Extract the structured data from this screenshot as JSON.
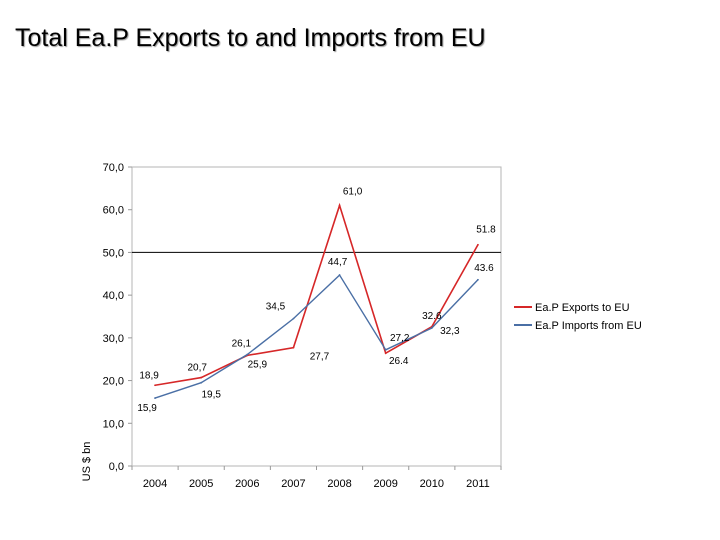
{
  "slide": {
    "title": "Total Ea.P Exports to and Imports from EU"
  },
  "chart_data": {
    "type": "line",
    "title": "",
    "xlabel": "",
    "ylabel": "US $ bn",
    "ylim": [
      0,
      70
    ],
    "yticks": [
      "0,0",
      "10,0",
      "20,0",
      "30,0",
      "40,0",
      "50,0",
      "60,0",
      "70,0"
    ],
    "categories": [
      "2004",
      "2005",
      "2006",
      "2007",
      "2008",
      "2009",
      "2010",
      "2011"
    ],
    "reference_line": 50,
    "grid": false,
    "legend": "right",
    "series": [
      {
        "name": "Ea.P Exports to EU",
        "color": "#d62728",
        "values": [
          18.9,
          20.7,
          25.9,
          27.7,
          61.0,
          26.4,
          32.6,
          51.8
        ],
        "labels": [
          "18,9",
          "20,7",
          "25,9",
          "27,7",
          "61,0",
          "26.4",
          "32.6",
          "51.8"
        ]
      },
      {
        "name": "Ea.P Imports from EU",
        "color": "#4a6fa5",
        "values": [
          15.9,
          19.5,
          26.1,
          34.5,
          44.7,
          27.2,
          32.3,
          43.6
        ],
        "labels": [
          "15,9",
          "19,5",
          "26,1",
          "34,5",
          "44,7",
          "27,2",
          "32,3",
          "43.6"
        ]
      }
    ]
  }
}
